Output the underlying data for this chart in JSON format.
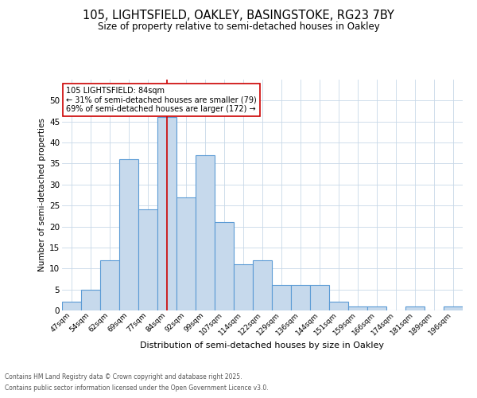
{
  "title1": "105, LIGHTSFIELD, OAKLEY, BASINGSTOKE, RG23 7BY",
  "title2": "Size of property relative to semi-detached houses in Oakley",
  "xlabel": "Distribution of semi-detached houses by size in Oakley",
  "ylabel": "Number of semi-detached properties",
  "footnote1": "Contains HM Land Registry data © Crown copyright and database right 2025.",
  "footnote2": "Contains public sector information licensed under the Open Government Licence v3.0.",
  "categories": [
    "47sqm",
    "54sqm",
    "62sqm",
    "69sqm",
    "77sqm",
    "84sqm",
    "92sqm",
    "99sqm",
    "107sqm",
    "114sqm",
    "122sqm",
    "129sqm",
    "136sqm",
    "144sqm",
    "151sqm",
    "159sqm",
    "166sqm",
    "174sqm",
    "181sqm",
    "189sqm",
    "196sqm"
  ],
  "values": [
    2,
    5,
    12,
    36,
    24,
    46,
    27,
    37,
    21,
    11,
    12,
    6,
    6,
    6,
    2,
    1,
    1,
    0,
    1,
    0,
    1
  ],
  "bar_color": "#c6d9ec",
  "bar_edge_color": "#5b9bd5",
  "highlight_index": 5,
  "highlight_line_color": "#cc0000",
  "annotation_line1": "105 LIGHTSFIELD: 84sqm",
  "annotation_line2": "← 31% of semi-detached houses are smaller (79)",
  "annotation_line3": "69% of semi-detached houses are larger (172) →",
  "annotation_box_color": "#ffffff",
  "annotation_box_edge_color": "#cc0000",
  "ylim": [
    0,
    55
  ],
  "yticks": [
    0,
    5,
    10,
    15,
    20,
    25,
    30,
    35,
    40,
    45,
    50
  ],
  "bg_color": "#ffffff",
  "grid_color": "#c8d8e8",
  "font_family": "DejaVu Sans"
}
